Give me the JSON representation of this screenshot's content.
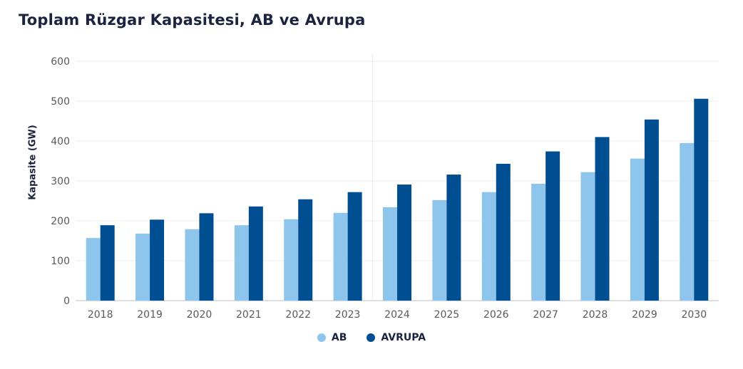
{
  "chart_data": {
    "type": "bar",
    "title": "Toplam Rüzgar Kapasitesi, AB ve Avrupa",
    "xlabel": "",
    "ylabel": "Kapasite (GW)",
    "ylim": [
      0,
      600
    ],
    "yticks": [
      0,
      100,
      200,
      300,
      400,
      500,
      600
    ],
    "grid": true,
    "legend_position": "bottom-center",
    "categories": [
      "2018",
      "2019",
      "2020",
      "2021",
      "2022",
      "2023",
      "2024",
      "2025",
      "2026",
      "2027",
      "2028",
      "2029",
      "2030"
    ],
    "series": [
      {
        "name": "AB",
        "color": "#8ec5ec",
        "values": [
          157,
          168,
          179,
          189,
          204,
          220,
          234,
          252,
          272,
          293,
          322,
          356,
          395
        ]
      },
      {
        "name": "AVRUPA",
        "color": "#004e92",
        "values": [
          189,
          203,
          219,
          236,
          254,
          272,
          291,
          316,
          343,
          374,
          410,
          454,
          506
        ]
      }
    ],
    "divider_after_category": "2023"
  }
}
